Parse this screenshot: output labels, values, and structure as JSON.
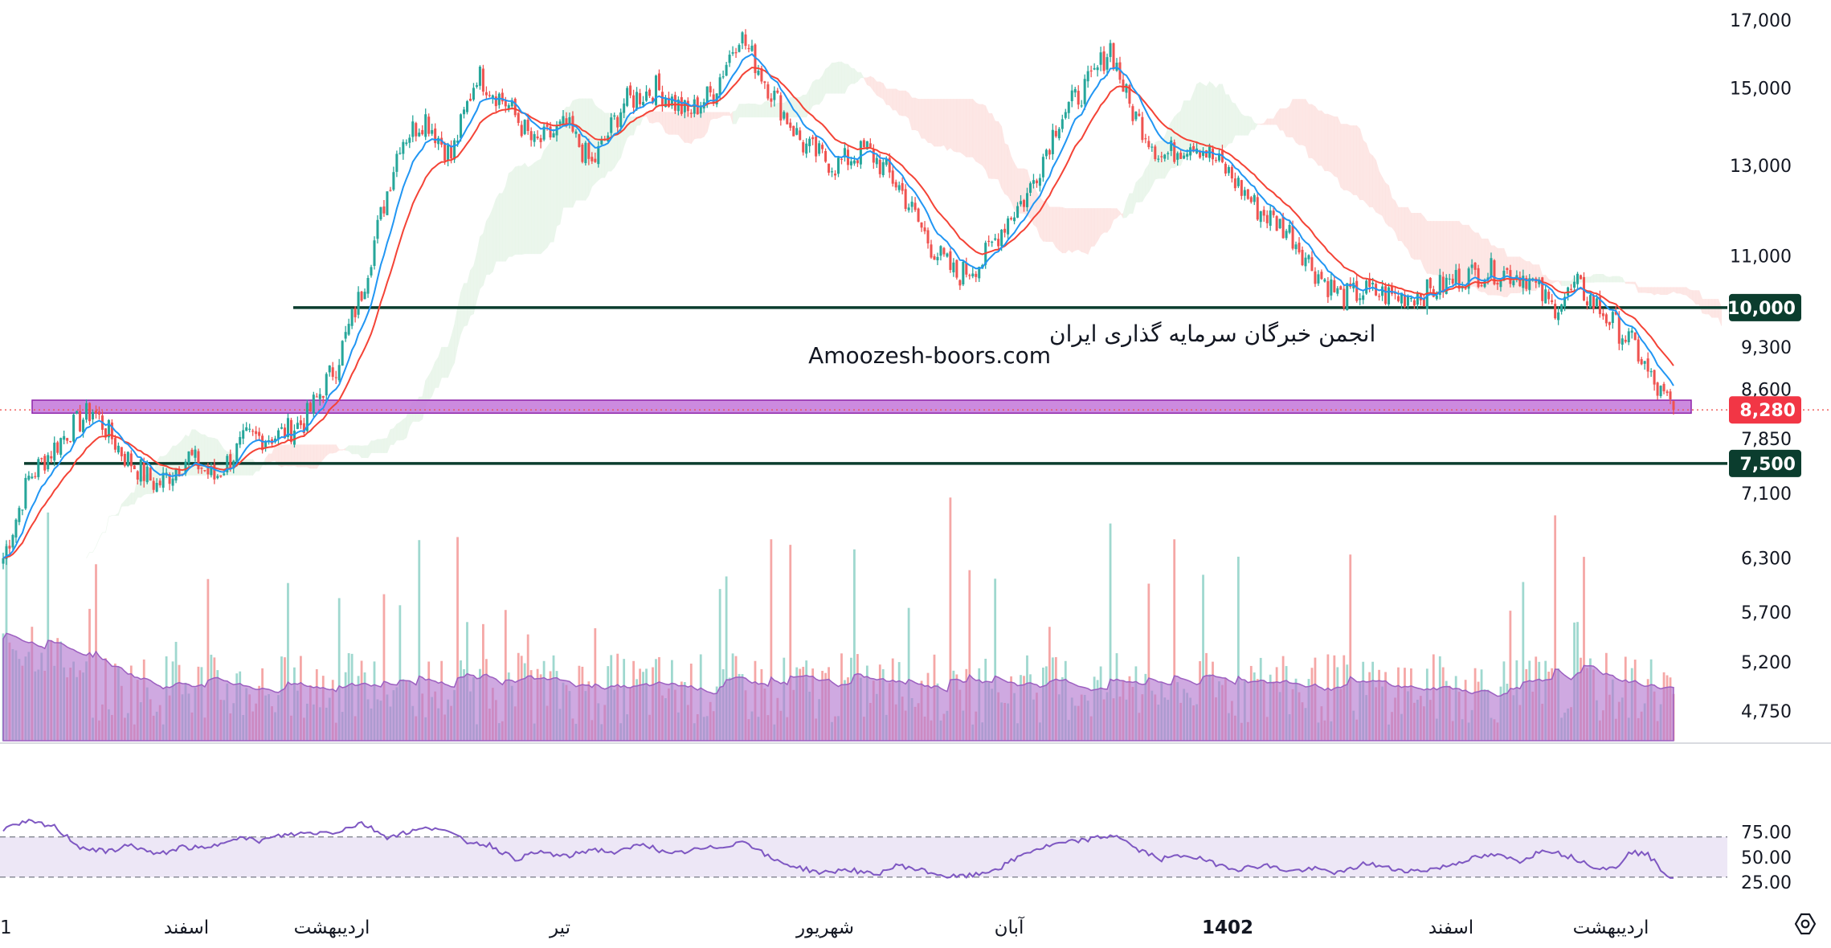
{
  "watermark": {
    "line1": "انجمن خبرگان سرمایه گذاری ایران",
    "line2": "Amoozesh-boors.com"
  },
  "chart_data": {
    "type": "candlestick",
    "title": "",
    "price_axis": {
      "scale": "log",
      "ylim": [
        4500,
        17600
      ],
      "ticks": [
        "17,000",
        "15,000",
        "13,000",
        "11,000",
        "9,300",
        "8,600",
        "7,850",
        "7,100",
        "6,300",
        "5,700",
        "5,200",
        "4,750"
      ]
    },
    "time_axis": {
      "ticks": [
        "1",
        "اسفند",
        "اردیبهشت",
        "تیر",
        "شهریور",
        "آبان",
        "1402",
        "اسفند",
        "اردیبهشت"
      ],
      "bold_ticks": [
        "1402"
      ]
    },
    "series_close_anchors": [
      [
        0,
        6300
      ],
      [
        8,
        7300
      ],
      [
        20,
        7950
      ],
      [
        28,
        8280
      ],
      [
        38,
        7600
      ],
      [
        48,
        7200
      ],
      [
        58,
        7600
      ],
      [
        66,
        7300
      ],
      [
        76,
        7850
      ],
      [
        86,
        7900
      ],
      [
        94,
        8100
      ],
      [
        104,
        9000
      ],
      [
        112,
        10300
      ],
      [
        124,
        13600
      ],
      [
        132,
        14200
      ],
      [
        140,
        13200
      ],
      [
        148,
        15400
      ],
      [
        158,
        14500
      ],
      [
        166,
        13500
      ],
      [
        176,
        14000
      ],
      [
        184,
        13000
      ],
      [
        194,
        14600
      ],
      [
        204,
        15000
      ],
      [
        214,
        14300
      ],
      [
        222,
        14900
      ],
      [
        230,
        16600
      ],
      [
        240,
        14900
      ],
      [
        250,
        13500
      ],
      [
        260,
        13000
      ],
      [
        270,
        13400
      ],
      [
        280,
        12500
      ],
      [
        290,
        11200
      ],
      [
        298,
        10600
      ],
      [
        306,
        10900
      ],
      [
        314,
        11800
      ],
      [
        320,
        12300
      ],
      [
        330,
        14200
      ],
      [
        340,
        15200
      ],
      [
        346,
        16200
      ],
      [
        352,
        14500
      ],
      [
        362,
        13200
      ],
      [
        372,
        13600
      ],
      [
        382,
        12900
      ],
      [
        392,
        12000
      ],
      [
        402,
        11500
      ],
      [
        410,
        10700
      ],
      [
        418,
        10200
      ],
      [
        426,
        10300
      ],
      [
        436,
        10200
      ],
      [
        446,
        10300
      ],
      [
        456,
        10600
      ],
      [
        466,
        10700
      ],
      [
        476,
        10600
      ],
      [
        484,
        10000
      ],
      [
        492,
        10400
      ],
      [
        500,
        9900
      ],
      [
        510,
        9300
      ],
      [
        516,
        8650
      ],
      [
        522,
        8280
      ]
    ],
    "last_price": 8280,
    "levels": [
      {
        "value": 10000,
        "label": "10,000",
        "color": "#0b3d2e"
      },
      {
        "value": 7500,
        "label": "7,500",
        "color": "#0b3d2e"
      }
    ],
    "support_zone": {
      "from": 8230,
      "to": 8430,
      "color": "#c77ddb"
    },
    "last_price_label": "8,280",
    "up_color": "#26a69a",
    "down_color": "#ef5350",
    "ma_fast_color": "#2196f3",
    "ma_slow_color": "#f44336",
    "volume_ma_color": "#b57bd1",
    "rsi": {
      "ylim": [
        15,
        90
      ],
      "upper": 70,
      "lower": 30,
      "ticks": [
        "75.00",
        "50.00",
        "25.00"
      ],
      "line_color": "#7e57c2",
      "band_color": "#ede7f6",
      "values_anchor": [
        [
          0,
          78
        ],
        [
          8,
          85
        ],
        [
          16,
          80
        ],
        [
          24,
          60
        ],
        [
          32,
          55
        ],
        [
          40,
          62
        ],
        [
          48,
          52
        ],
        [
          56,
          60
        ],
        [
          64,
          58
        ],
        [
          72,
          70
        ],
        [
          80,
          66
        ],
        [
          88,
          72
        ],
        [
          96,
          74
        ],
        [
          104,
          75
        ],
        [
          112,
          84
        ],
        [
          120,
          70
        ],
        [
          128,
          76
        ],
        [
          136,
          80
        ],
        [
          144,
          66
        ],
        [
          152,
          62
        ],
        [
          160,
          48
        ],
        [
          168,
          55
        ],
        [
          176,
          50
        ],
        [
          184,
          58
        ],
        [
          192,
          54
        ],
        [
          200,
          64
        ],
        [
          208,
          52
        ],
        [
          216,
          57
        ],
        [
          224,
          60
        ],
        [
          232,
          66
        ],
        [
          240,
          48
        ],
        [
          248,
          40
        ],
        [
          256,
          34
        ],
        [
          264,
          38
        ],
        [
          272,
          32
        ],
        [
          280,
          42
        ],
        [
          288,
          36
        ],
        [
          296,
          30
        ],
        [
          304,
          32
        ],
        [
          312,
          40
        ],
        [
          320,
          55
        ],
        [
          328,
          62
        ],
        [
          336,
          66
        ],
        [
          344,
          70
        ],
        [
          348,
          72
        ],
        [
          354,
          58
        ],
        [
          362,
          48
        ],
        [
          370,
          52
        ],
        [
          378,
          44
        ],
        [
          386,
          38
        ],
        [
          394,
          42
        ],
        [
          402,
          36
        ],
        [
          410,
          38
        ],
        [
          418,
          34
        ],
        [
          426,
          44
        ],
        [
          434,
          38
        ],
        [
          442,
          36
        ],
        [
          450,
          40
        ],
        [
          458,
          48
        ],
        [
          466,
          52
        ],
        [
          474,
          46
        ],
        [
          482,
          58
        ],
        [
          490,
          50
        ],
        [
          498,
          40
        ],
        [
          504,
          38
        ],
        [
          508,
          56
        ],
        [
          514,
          52
        ],
        [
          520,
          32
        ],
        [
          526,
          24
        ]
      ]
    },
    "ichimoku_cloud_colors": {
      "bull": "#e8f5e9",
      "bear": "#fde3e1"
    }
  },
  "icons": {
    "settings": "settings-gear-icon"
  }
}
